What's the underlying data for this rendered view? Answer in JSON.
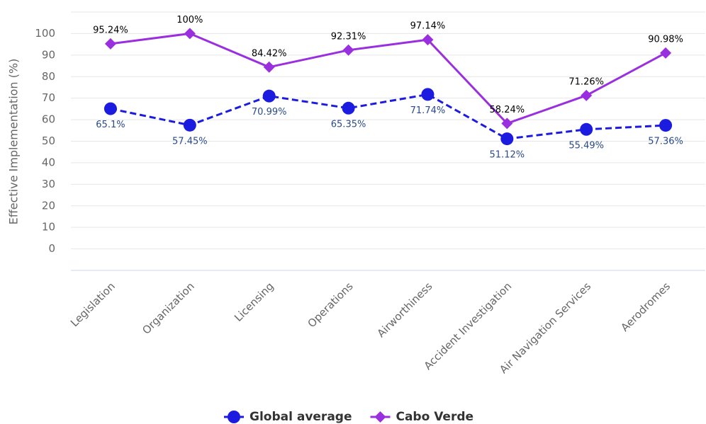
{
  "chart_data": {
    "type": "line",
    "y_label": "Effective Implementation (%)",
    "categories": [
      "Legislation",
      "Organization",
      "Licensing",
      "Operations",
      "Airworthiness",
      "Accident Investigation",
      "Air Navigation Services",
      "Aerodromes"
    ],
    "series": [
      {
        "name": "Global average",
        "color": "#1c1ce0",
        "marker": "circle",
        "dashed": true,
        "values": [
          65.1,
          57.45,
          70.99,
          65.35,
          71.74,
          51.12,
          55.49,
          57.36
        ],
        "value_labels": [
          "65.1%",
          "57.45%",
          "70.99%",
          "65.35%",
          "71.74%",
          "51.12%",
          "55.49%",
          "57.36%"
        ]
      },
      {
        "name": "Cabo Verde",
        "color": "#9a2fe0",
        "marker": "diamond",
        "dashed": false,
        "values": [
          95.24,
          100,
          84.42,
          92.31,
          97.14,
          58.24,
          71.26,
          90.98
        ],
        "value_labels": [
          "95.24%",
          "100%",
          "84.42%",
          "92.31%",
          "97.14%",
          "58.24%",
          "71.26%",
          "90.98%"
        ]
      }
    ],
    "ylim": [
      -10,
      110
    ],
    "yticks": [
      0,
      10,
      20,
      30,
      40,
      50,
      60,
      70,
      80,
      90,
      100
    ],
    "grid": true,
    "legend": "bottom"
  }
}
